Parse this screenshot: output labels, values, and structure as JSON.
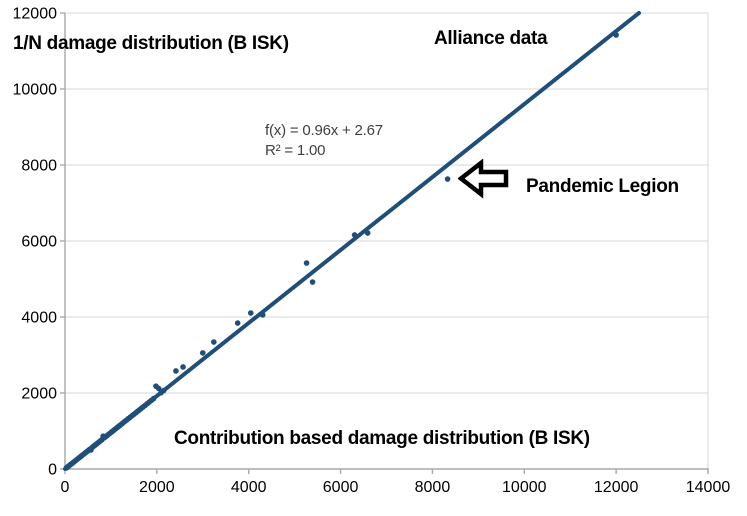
{
  "chart": {
    "title": "1/N damage distribution (B ISK)",
    "series_label": "Alliance data",
    "point_label": "Pandemic Legion",
    "xlabel": "Contribution based damage distribution (B ISK)",
    "trendline": {
      "equation": "f(x) = 0.96x + 2.67",
      "r_squared": "R² = 1.00"
    },
    "icons": {
      "pandemic_arrow": "left-block-arrow"
    }
  },
  "chart_data": {
    "type": "scatter",
    "title": "1/N damage distribution (B ISK)",
    "xlabel": "Contribution based damage distribution (B ISK)",
    "ylabel": "1/N damage distribution (B ISK)",
    "xlim": [
      0,
      14000
    ],
    "ylim": [
      0,
      12000
    ],
    "x_ticks": [
      0,
      2000,
      4000,
      6000,
      8000,
      10000,
      12000,
      14000
    ],
    "y_ticks": [
      0,
      2000,
      4000,
      6000,
      8000,
      10000,
      12000
    ],
    "grid": "horizontal",
    "legend": "none",
    "trendline": {
      "slope": 0.96,
      "intercept": 2.67,
      "r2": 1.0,
      "label": "f(x) = 0.96x + 2.67",
      "r2_label": "R² = 1.00"
    },
    "annotations": [
      {
        "text": "Alliance data",
        "type": "series-label"
      },
      {
        "text": "Pandemic Legion",
        "type": "point-callout",
        "target_point": [
          8330,
          7630
        ]
      }
    ],
    "colors": {
      "series": "#1F4E79",
      "gridline": "#D7D7D7",
      "axis": "#A9A9A9",
      "text": "#000000",
      "equation_text": "#3F3F3F"
    },
    "series": [
      {
        "name": "Alliance data",
        "color": "#1F4E79",
        "points": [
          [
            30,
            29
          ],
          [
            55,
            53
          ],
          [
            80,
            77
          ],
          [
            105,
            101
          ],
          [
            130,
            125
          ],
          [
            160,
            154
          ],
          [
            190,
            182
          ],
          [
            220,
            211
          ],
          [
            250,
            240
          ],
          [
            280,
            269
          ],
          [
            310,
            298
          ],
          [
            340,
            326
          ],
          [
            370,
            355
          ],
          [
            400,
            384
          ],
          [
            430,
            413
          ],
          [
            460,
            442
          ],
          [
            490,
            470
          ],
          [
            515,
            495
          ],
          [
            540,
            519
          ],
          [
            565,
            500
          ],
          [
            590,
            566
          ],
          [
            615,
            590
          ],
          [
            640,
            614
          ],
          [
            665,
            638
          ],
          [
            690,
            662
          ],
          [
            715,
            686
          ],
          [
            745,
            715
          ],
          [
            775,
            744
          ],
          [
            805,
            773
          ],
          [
            830,
            865
          ],
          [
            855,
            821
          ],
          [
            885,
            850
          ],
          [
            915,
            878
          ],
          [
            945,
            907
          ],
          [
            975,
            936
          ],
          [
            1005,
            965
          ],
          [
            1035,
            994
          ],
          [
            1065,
            1022
          ],
          [
            1095,
            1051
          ],
          [
            1125,
            1080
          ],
          [
            1155,
            1109
          ],
          [
            1190,
            1142
          ],
          [
            1225,
            1176
          ],
          [
            1260,
            1210
          ],
          [
            1300,
            1248
          ],
          [
            1340,
            1286
          ],
          [
            1380,
            1325
          ],
          [
            1420,
            1363
          ],
          [
            1460,
            1402
          ],
          [
            1500,
            1440
          ],
          [
            1540,
            1478
          ],
          [
            1580,
            1517
          ],
          [
            1620,
            1555
          ],
          [
            1660,
            1594
          ],
          [
            1700,
            1632
          ],
          [
            1745,
            1675
          ],
          [
            1790,
            1718
          ],
          [
            1835,
            1762
          ],
          [
            1880,
            1805
          ],
          [
            1930,
            1853
          ],
          [
            1980,
            2180
          ],
          [
            2040,
            2120
          ],
          [
            2090,
            2006
          ],
          [
            2150,
            2064
          ],
          [
            2415,
            2580
          ],
          [
            2570,
            2685
          ],
          [
            3000,
            3055
          ],
          [
            3240,
            3340
          ],
          [
            3760,
            3840
          ],
          [
            4045,
            4105
          ],
          [
            4305,
            4055
          ],
          [
            5260,
            5420
          ],
          [
            5390,
            4920
          ],
          [
            6305,
            6160
          ],
          [
            6590,
            6210
          ],
          [
            8330,
            7630
          ],
          [
            12000,
            11420
          ]
        ]
      }
    ]
  }
}
